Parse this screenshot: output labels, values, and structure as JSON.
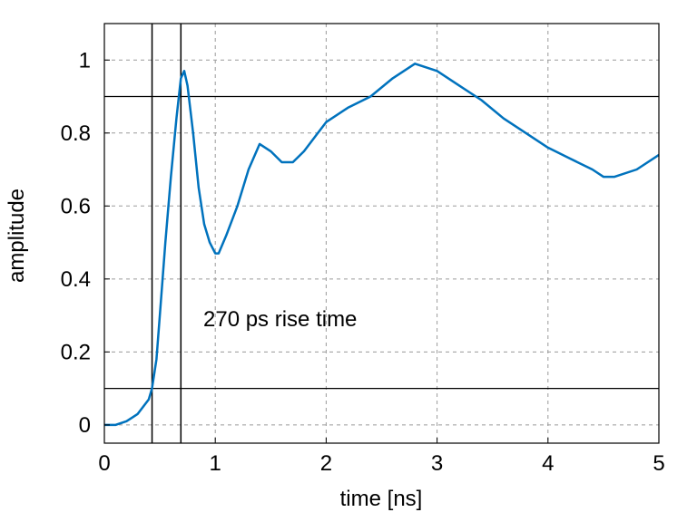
{
  "chart_data": {
    "type": "line",
    "xlabel": "time [ns]",
    "ylabel": "amplitude",
    "xlim": [
      0,
      5
    ],
    "ylim": [
      -0.05,
      1.1
    ],
    "xticks": [
      0,
      1,
      2,
      3,
      4,
      5
    ],
    "xtick_labels": [
      "0",
      "1",
      "2",
      "3",
      "4",
      "5"
    ],
    "yticks": [
      0,
      0.2,
      0.4,
      0.6,
      0.8,
      1
    ],
    "ytick_labels": [
      "0",
      "0.2",
      "0.4",
      "0.6",
      "0.8",
      "1"
    ],
    "grid": true,
    "annotation": "270 ps rise time",
    "reference_lines": {
      "horizontal": [
        0.1,
        0.9
      ],
      "vertical": [
        0.43,
        0.69
      ]
    },
    "series": [
      {
        "color": "#0072bd",
        "x": [
          0,
          0.1,
          0.2,
          0.25,
          0.3,
          0.35,
          0.4,
          0.43,
          0.47,
          0.5,
          0.55,
          0.6,
          0.65,
          0.69,
          0.72,
          0.75,
          0.8,
          0.85,
          0.9,
          0.95,
          1.0,
          1.03,
          1.1,
          1.2,
          1.3,
          1.4,
          1.5,
          1.6,
          1.7,
          1.8,
          1.9,
          2.0,
          2.2,
          2.4,
          2.6,
          2.8,
          3.0,
          3.2,
          3.4,
          3.6,
          3.8,
          4.0,
          4.2,
          4.4,
          4.5,
          4.6,
          4.8,
          5.0
        ],
        "y": [
          0.0,
          0.0,
          0.01,
          0.02,
          0.03,
          0.05,
          0.07,
          0.1,
          0.18,
          0.3,
          0.5,
          0.68,
          0.84,
          0.95,
          0.97,
          0.93,
          0.8,
          0.65,
          0.55,
          0.5,
          0.47,
          0.47,
          0.52,
          0.6,
          0.7,
          0.77,
          0.75,
          0.72,
          0.72,
          0.75,
          0.79,
          0.83,
          0.87,
          0.9,
          0.95,
          0.99,
          0.97,
          0.93,
          0.89,
          0.84,
          0.8,
          0.76,
          0.73,
          0.7,
          0.68,
          0.68,
          0.7,
          0.74
        ]
      }
    ]
  }
}
